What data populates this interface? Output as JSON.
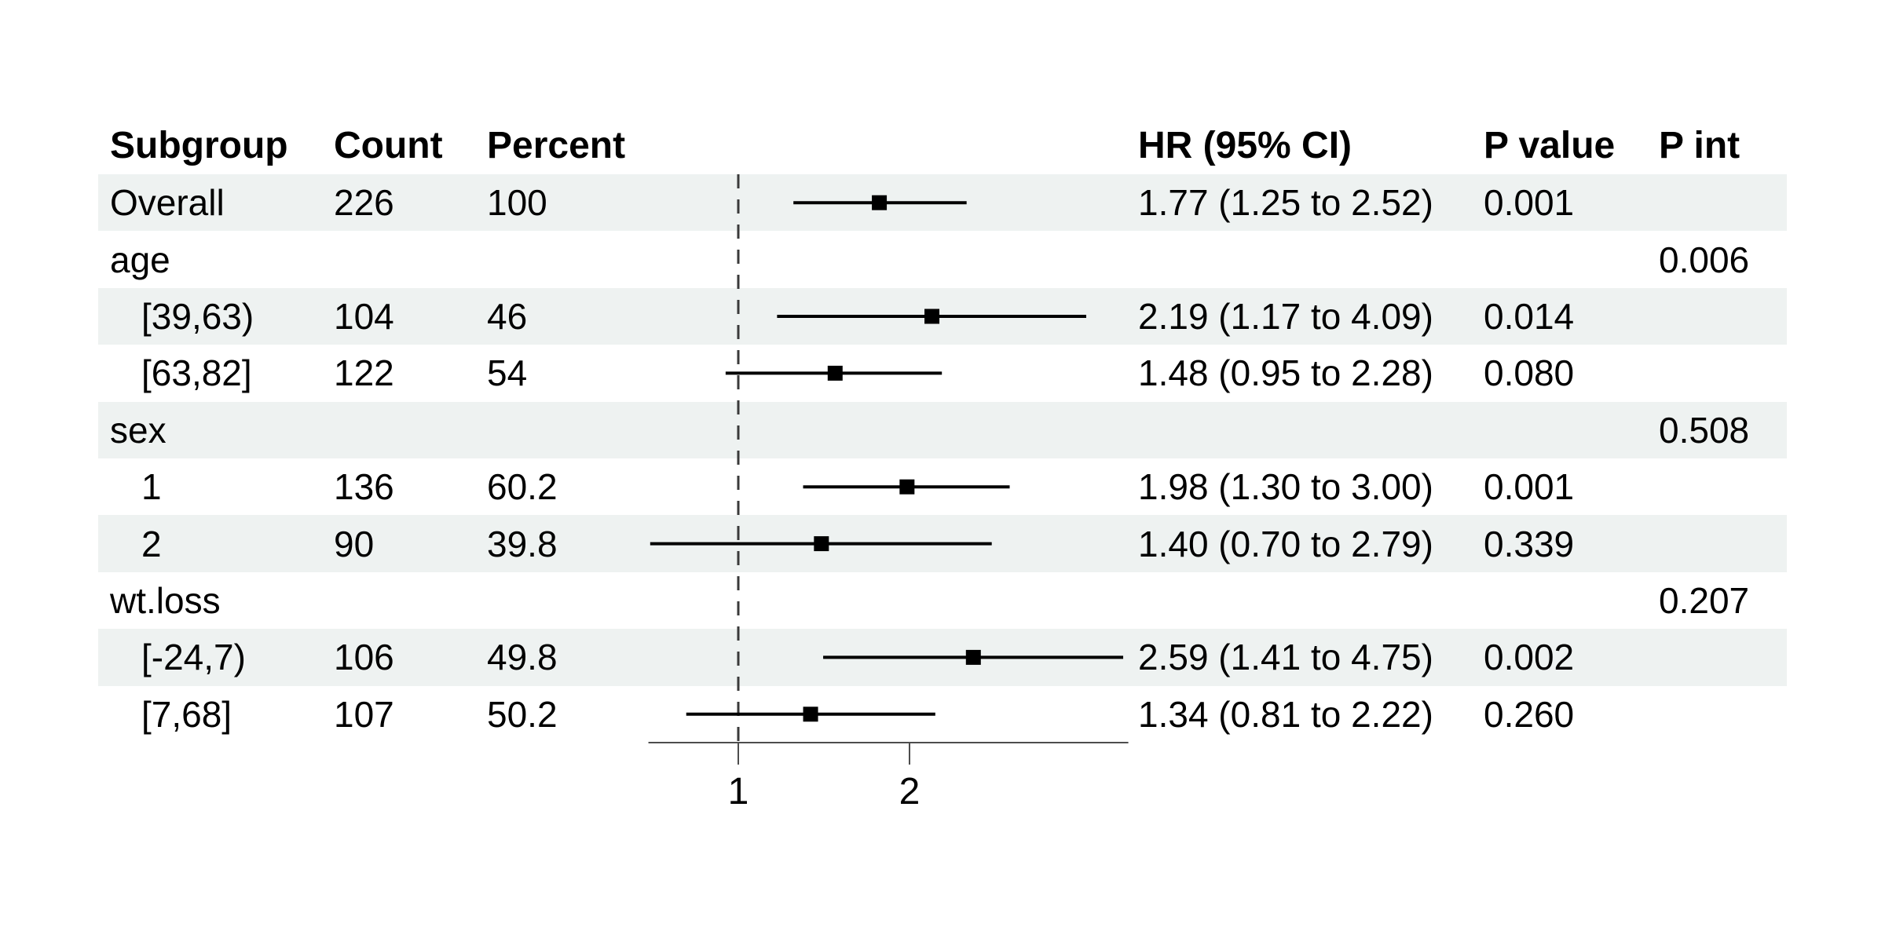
{
  "colors": {
    "stripe": "#eef2f1",
    "text": "#000000",
    "ci_line": "#000000",
    "point_marker": "#000000",
    "reference_line": "#3a3a3a",
    "axis": "#4d4d4d"
  },
  "chart_data": {
    "type": "forest",
    "columns": [
      "Subgroup",
      "Count",
      "Percent",
      "HR (95% CI)",
      "P value",
      "P int"
    ],
    "rows": [
      {
        "label": "Overall",
        "indent": false,
        "shaded": true,
        "count": "226",
        "percent": "100",
        "hr": 1.77,
        "low": 1.25,
        "high": 2.52,
        "hr_text": "1.77 (1.25 to 2.52)",
        "p": "0.001",
        "p_int": ""
      },
      {
        "label": "age",
        "indent": false,
        "shaded": false,
        "count": "",
        "percent": "",
        "hr": null,
        "low": null,
        "high": null,
        "hr_text": "",
        "p": "",
        "p_int": "0.006"
      },
      {
        "label": "[39,63)",
        "indent": true,
        "shaded": true,
        "count": "104",
        "percent": "46",
        "hr": 2.19,
        "low": 1.17,
        "high": 4.09,
        "hr_text": "2.19 (1.17 to 4.09)",
        "p": "0.014",
        "p_int": ""
      },
      {
        "label": "[63,82]",
        "indent": true,
        "shaded": false,
        "count": "122",
        "percent": "54",
        "hr": 1.48,
        "low": 0.95,
        "high": 2.28,
        "hr_text": "1.48 (0.95 to 2.28)",
        "p": "0.080",
        "p_int": ""
      },
      {
        "label": "sex",
        "indent": false,
        "shaded": true,
        "count": "",
        "percent": "",
        "hr": null,
        "low": null,
        "high": null,
        "hr_text": "",
        "p": "",
        "p_int": "0.508"
      },
      {
        "label": "1",
        "indent": true,
        "shaded": false,
        "count": "136",
        "percent": "60.2",
        "hr": 1.98,
        "low": 1.3,
        "high": 3.0,
        "hr_text": "1.98 (1.30 to 3.00)",
        "p": "0.001",
        "p_int": ""
      },
      {
        "label": "2",
        "indent": true,
        "shaded": true,
        "count": "90",
        "percent": "39.8",
        "hr": 1.4,
        "low": 0.7,
        "high": 2.79,
        "hr_text": "1.40 (0.70 to 2.79)",
        "p": "0.339",
        "p_int": ""
      },
      {
        "label": "wt.loss",
        "indent": false,
        "shaded": false,
        "count": "",
        "percent": "",
        "hr": null,
        "low": null,
        "high": null,
        "hr_text": "",
        "p": "",
        "p_int": "0.207"
      },
      {
        "label": "[-24,7)",
        "indent": true,
        "shaded": true,
        "count": "106",
        "percent": "49.8",
        "hr": 2.59,
        "low": 1.41,
        "high": 4.75,
        "hr_text": "2.59 (1.41 to 4.75)",
        "p": "0.002",
        "p_int": ""
      },
      {
        "label": "[7,68]",
        "indent": true,
        "shaded": false,
        "count": "107",
        "percent": "50.2",
        "hr": 1.34,
        "low": 0.81,
        "high": 2.22,
        "hr_text": "1.34 (0.81 to 2.22)",
        "p": "0.260",
        "p_int": ""
      }
    ],
    "axis": {
      "scale": "log",
      "reference_value": 1,
      "ticks": [
        1,
        2
      ],
      "tick_labels": [
        "1",
        "2"
      ],
      "range": [
        0.695,
        4.85
      ]
    }
  }
}
